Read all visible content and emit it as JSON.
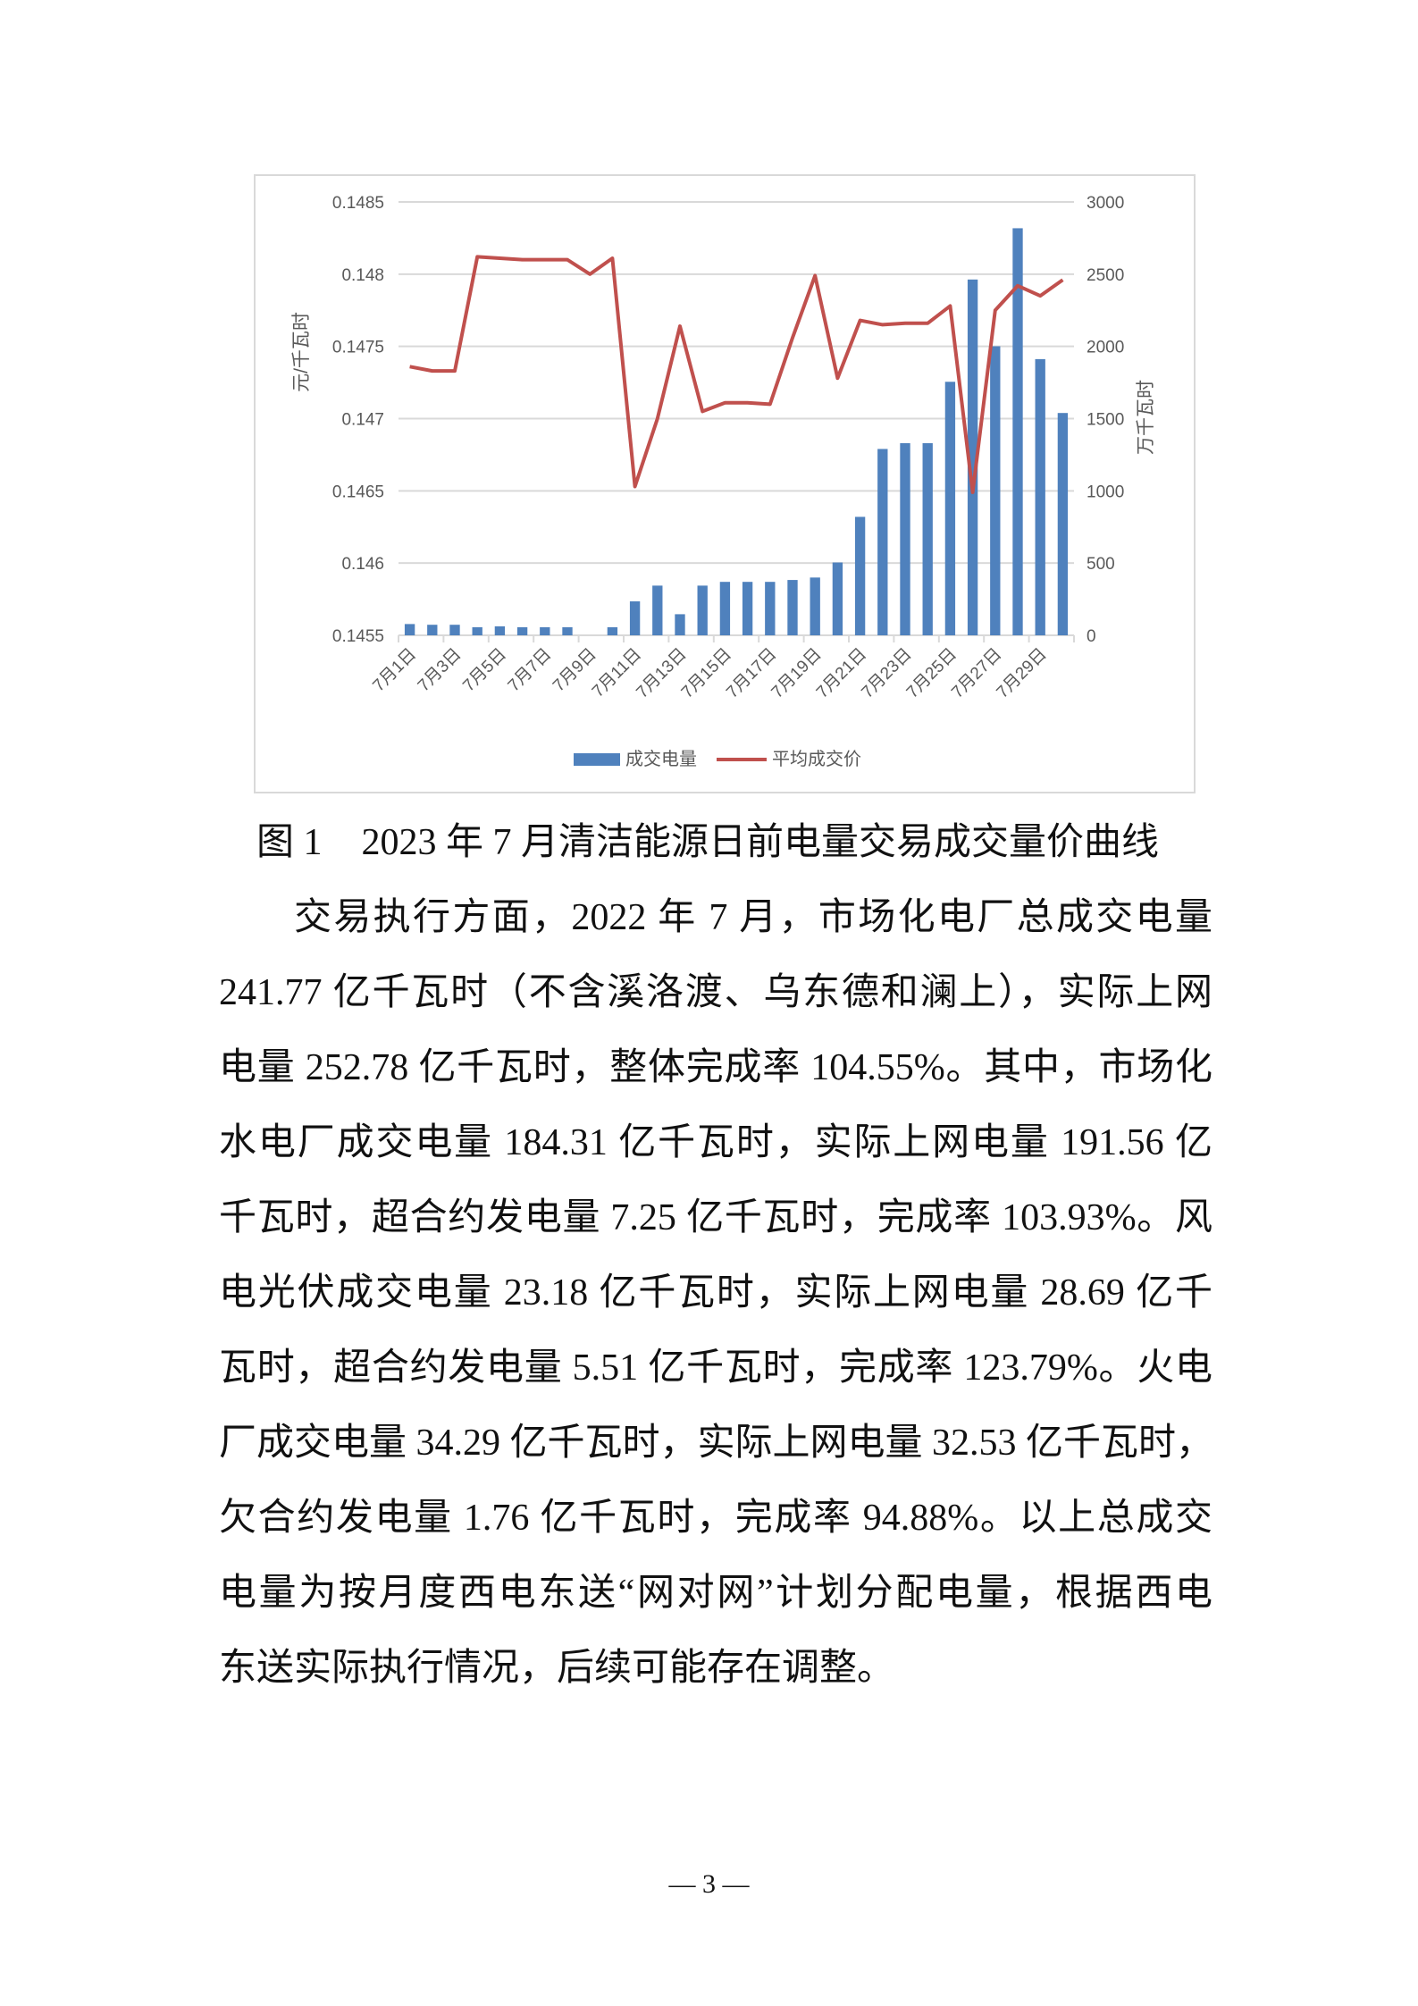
{
  "chart_data": {
    "type": "bar+line",
    "categories": [
      "7月1日",
      "7月2日",
      "7月3日",
      "7月4日",
      "7月5日",
      "7月6日",
      "7月7日",
      "7月8日",
      "7月9日",
      "7月10日",
      "7月11日",
      "7月12日",
      "7月13日",
      "7月14日",
      "7月15日",
      "7月16日",
      "7月17日",
      "7月18日",
      "7月19日",
      "7月20日",
      "7月21日",
      "7月22日",
      "7月23日",
      "7月24日",
      "7月25日",
      "7月26日",
      "7月27日",
      "7月28日",
      "7月29日",
      "7月30日"
    ],
    "tick_labels": [
      "7月1日",
      "7月3日",
      "7月5日",
      "7月7日",
      "7月9日",
      "7月11日",
      "7月13日",
      "7月15日",
      "7月17日",
      "7月19日",
      "7月21日",
      "7月23日",
      "7月25日",
      "7月27日",
      "7月29日"
    ],
    "series": [
      {
        "name": "成交电量",
        "type": "bar",
        "axis": "right",
        "color": "#4f81bd",
        "values": [
          78,
          73,
          73,
          56,
          62,
          56,
          56,
          56,
          0,
          56,
          235,
          344,
          146,
          344,
          370,
          370,
          370,
          383,
          400,
          504,
          820,
          1290,
          1330,
          1330,
          1755,
          2463,
          2001,
          2818,
          1912,
          1539
        ]
      },
      {
        "name": "平均成交价",
        "type": "line",
        "axis": "left",
        "color": "#c0504d",
        "values": [
          0.14736,
          0.14733,
          0.14733,
          0.14812,
          0.14811,
          0.1481,
          0.1481,
          0.1481,
          0.148,
          0.14811,
          0.14653,
          0.147,
          0.14764,
          0.14705,
          0.14711,
          0.14711,
          0.1471,
          0.14756,
          0.14799,
          0.14728,
          0.14768,
          0.14765,
          0.14766,
          0.14766,
          0.14778,
          0.14649,
          0.14775,
          0.14792,
          0.14785,
          0.14796
        ]
      }
    ],
    "y_left": {
      "label": "元/千瓦时",
      "ylim": [
        0.1455,
        0.1485
      ],
      "ticks": [
        "0.1455",
        "0.146",
        "0.1465",
        "0.147",
        "0.1475",
        "0.148",
        "0.1485"
      ]
    },
    "y_right": {
      "label": "万千瓦时",
      "ylim": [
        0,
        3000
      ],
      "ticks": [
        "0",
        "500",
        "1000",
        "1500",
        "2000",
        "2500",
        "3000"
      ]
    },
    "grid": true,
    "legend": "bottom"
  },
  "caption": {
    "number": "图 1",
    "title": "2023 年 7 月清洁能源日前电量交易成交量价曲线"
  },
  "body_lines": [
    "交易执行方面，2022 年 7 月，市场化电厂总成交电量",
    "241.77 亿千瓦时（不含溪洛渡、乌东德和澜上），实际上网",
    "电量 252.78 亿千瓦时，整体完成率 104.55%。其中，市场化",
    "水电厂成交电量 184.31 亿千瓦时，实际上网电量 191.56 亿",
    "千瓦时，超合约发电量 7.25 亿千瓦时，完成率 103.93%。风",
    "电光伏成交电量 23.18 亿千瓦时，实际上网电量 28.69 亿千",
    "瓦时，超合约发电量 5.51 亿千瓦时，完成率 123.79%。火电",
    "厂成交电量 34.29 亿千瓦时，实际上网电量 32.53 亿千瓦时，",
    "欠合约发电量 1.76 亿千瓦时，完成率 94.88%。以上总成交",
    "电量为按月度西电东送“网对网”计划分配电量，根据西电",
    "东送实际执行情况，后续可能存在调整。"
  ],
  "page_number": "— 3 —"
}
